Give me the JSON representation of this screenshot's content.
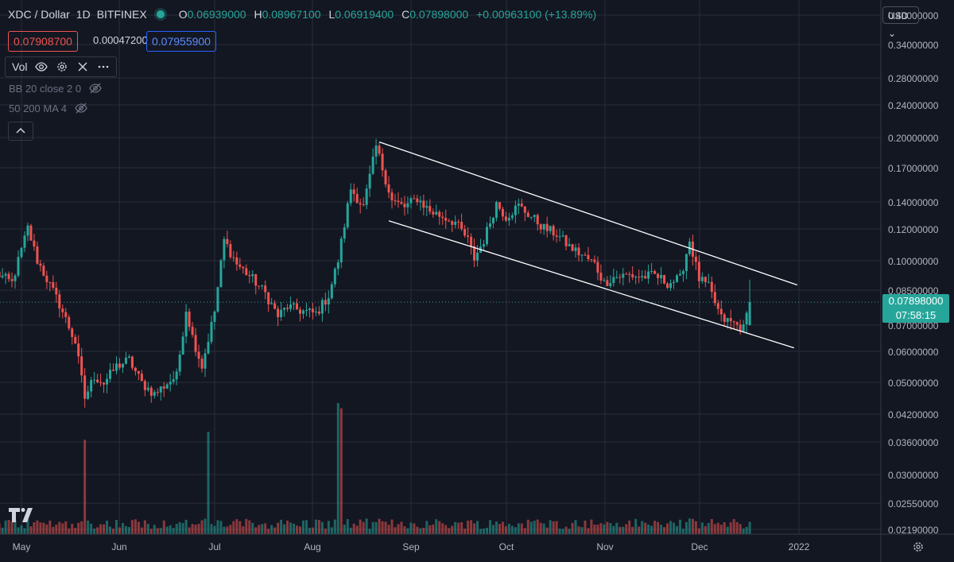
{
  "header": {
    "symbol": "XDC / Dollar",
    "interval": "1D",
    "exchange": "BITFINEX",
    "ohlc": [
      {
        "k": "O",
        "v": "0.06939000"
      },
      {
        "k": "H",
        "v": "0.08967100"
      },
      {
        "k": "L",
        "v": "0.06919400"
      },
      {
        "k": "C",
        "v": "0.07898000"
      }
    ],
    "change": "+0.00963100 (+13.89%)",
    "bid": "0.07908700",
    "spread": "0.00047200",
    "ask": "0.07955900"
  },
  "indicators": {
    "vol": "Vol",
    "bb": "BB 20 close 2 0",
    "ma": "50 200 MA 4"
  },
  "currency": "USD",
  "last_price": {
    "value": "0.07898000",
    "countdown": "07:58:15"
  },
  "colors": {
    "up": "#26a69a",
    "down": "#ef5350",
    "bg": "#131722",
    "grid": "#2a2e39",
    "text": "#b2b5be",
    "channel": "#ffffff"
  },
  "chart_data": {
    "type": "candlestick",
    "y_ticks": [
      "0.40000000",
      "0.34000000",
      "0.28000000",
      "0.24000000",
      "0.20000000",
      "0.17000000",
      "0.14000000",
      "0.12000000",
      "0.10000000",
      "0.08500000",
      "0.07000000",
      "0.06000000",
      "0.05000000",
      "0.04200000",
      "0.03600000",
      "0.03000000",
      "0.02550000",
      "0.02190000"
    ],
    "x_ticks": [
      "May",
      "Jun",
      "Jul",
      "Aug",
      "Sep",
      "Oct",
      "Nov",
      "Dec",
      "2022"
    ],
    "y_scale": "log",
    "channel_upper": [
      {
        "date": "2021-08-22",
        "price": 0.195
      },
      {
        "date": "2022-01-01",
        "price": 0.087
      }
    ],
    "channel_lower": [
      {
        "date": "2021-08-25",
        "price": 0.125
      },
      {
        "date": "2021-12-31",
        "price": 0.061
      }
    ],
    "price_path": [
      [
        "2021-04-23",
        0.093
      ],
      [
        "2021-04-28",
        0.088
      ],
      [
        "2021-05-03",
        0.12
      ],
      [
        "2021-05-06",
        0.1
      ],
      [
        "2021-05-09",
        0.09
      ],
      [
        "2021-05-13",
        0.078
      ],
      [
        "2021-05-18",
        0.063
      ],
      [
        "2021-05-21",
        0.046
      ],
      [
        "2021-05-24",
        0.052
      ],
      [
        "2021-05-27",
        0.05
      ],
      [
        "2021-05-31",
        0.055
      ],
      [
        "2021-06-04",
        0.057
      ],
      [
        "2021-06-08",
        0.05
      ],
      [
        "2021-06-12",
        0.047
      ],
      [
        "2021-06-16",
        0.05
      ],
      [
        "2021-06-19",
        0.052
      ],
      [
        "2021-06-22",
        0.076
      ],
      [
        "2021-06-24",
        0.065
      ],
      [
        "2021-06-27",
        0.055
      ],
      [
        "2021-07-01",
        0.075
      ],
      [
        "2021-07-04",
        0.112
      ],
      [
        "2021-07-08",
        0.098
      ],
      [
        "2021-07-13",
        0.09
      ],
      [
        "2021-07-17",
        0.083
      ],
      [
        "2021-07-21",
        0.073
      ],
      [
        "2021-07-24",
        0.077
      ],
      [
        "2021-07-29",
        0.075
      ],
      [
        "2021-08-02",
        0.074
      ],
      [
        "2021-08-06",
        0.082
      ],
      [
        "2021-08-09",
        0.1
      ],
      [
        "2021-08-13",
        0.15
      ],
      [
        "2021-08-17",
        0.135
      ],
      [
        "2021-08-21",
        0.19
      ],
      [
        "2021-08-26",
        0.14
      ],
      [
        "2021-08-30",
        0.135
      ],
      [
        "2021-09-03",
        0.142
      ],
      [
        "2021-09-07",
        0.132
      ],
      [
        "2021-09-11",
        0.128
      ],
      [
        "2021-09-15",
        0.124
      ],
      [
        "2021-09-19",
        0.112
      ],
      [
        "2021-09-21",
        0.101
      ],
      [
        "2021-09-24",
        0.112
      ],
      [
        "2021-09-28",
        0.138
      ],
      [
        "2021-10-01",
        0.128
      ],
      [
        "2021-10-05",
        0.136
      ],
      [
        "2021-10-09",
        0.128
      ],
      [
        "2021-10-13",
        0.12
      ],
      [
        "2021-10-17",
        0.116
      ],
      [
        "2021-10-21",
        0.108
      ],
      [
        "2021-10-25",
        0.103
      ],
      [
        "2021-10-29",
        0.098
      ],
      [
        "2021-11-01",
        0.088
      ],
      [
        "2021-11-04",
        0.091
      ],
      [
        "2021-11-09",
        0.092
      ],
      [
        "2021-11-13",
        0.091
      ],
      [
        "2021-11-17",
        0.092
      ],
      [
        "2021-11-21",
        0.088
      ],
      [
        "2021-11-25",
        0.09
      ],
      [
        "2021-11-28",
        0.112
      ],
      [
        "2021-12-01",
        0.09
      ],
      [
        "2021-12-04",
        0.086
      ],
      [
        "2021-12-08",
        0.072
      ],
      [
        "2021-12-12",
        0.07
      ],
      [
        "2021-12-15",
        0.068
      ],
      [
        "2021-12-17",
        0.079
      ]
    ],
    "volume_spikes": [
      {
        "date": "2021-05-21",
        "up": false,
        "rel": 0.72
      },
      {
        "date": "2021-06-29",
        "up": true,
        "rel": 0.78
      },
      {
        "date": "2021-08-09",
        "up": true,
        "rel": 1.0
      },
      {
        "date": "2021-08-10",
        "up": false,
        "rel": 0.96
      }
    ]
  }
}
